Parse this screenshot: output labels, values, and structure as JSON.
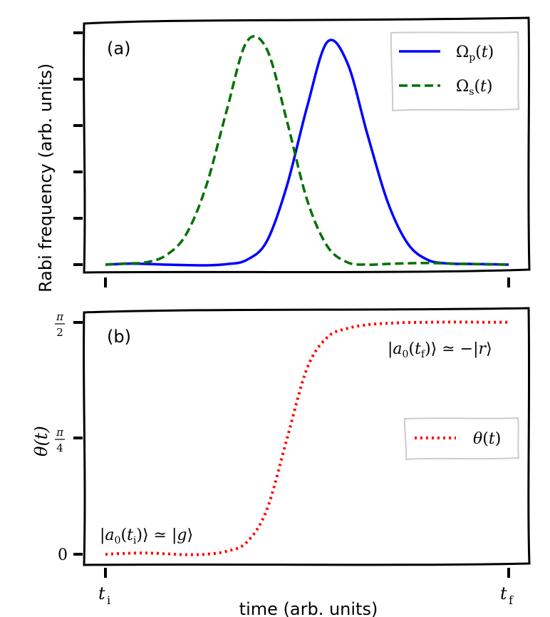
{
  "chart_data": [
    {
      "panel": "(a)",
      "type": "line",
      "ylabel": "Rabi frequency (arb. units)",
      "xlabel": "",
      "xlim": [
        0,
        1
      ],
      "ylim": [
        0,
        1
      ],
      "yticks_shown": 6,
      "grid": false,
      "legend_position": "top-right",
      "series": [
        {
          "name": "Ωp(t)",
          "style": "solid",
          "color": "#0000ff",
          "x": [
            0,
            0.05,
            0.1,
            0.15,
            0.2,
            0.25,
            0.3,
            0.35,
            0.4,
            0.45,
            0.5,
            0.55,
            0.6,
            0.65,
            0.7,
            0.75,
            0.8,
            0.85,
            0.9,
            0.95,
            1.0
          ],
          "values": [
            0,
            0.004,
            0.003,
            0.0,
            -0.002,
            -0.003,
            0.002,
            0.02,
            0.1,
            0.34,
            0.68,
            0.96,
            0.87,
            0.56,
            0.27,
            0.09,
            0.02,
            0.005,
            0.003,
            0.002,
            0.0
          ]
        },
        {
          "name": "Ωs(t)",
          "style": "dashed",
          "color": "#007000",
          "x": [
            0,
            0.05,
            0.1,
            0.15,
            0.2,
            0.25,
            0.3,
            0.35,
            0.4,
            0.45,
            0.5,
            0.55,
            0.6,
            0.65,
            0.7,
            0.75,
            0.8,
            0.85,
            0.9,
            0.95,
            1.0
          ],
          "values": [
            0,
            0.005,
            0.01,
            0.04,
            0.13,
            0.34,
            0.66,
            0.96,
            0.93,
            0.62,
            0.28,
            0.08,
            0.01,
            0.0,
            0.003,
            0.006,
            0.007,
            0.005,
            0.003,
            0.001,
            0.0
          ]
        }
      ]
    },
    {
      "panel": "(b)",
      "type": "line",
      "ylabel": "θ(t)",
      "xlabel": "time (arb. units)",
      "xlim": [
        0,
        1
      ],
      "ylim": [
        0,
        1.5708
      ],
      "ytick_labels": [
        "0",
        "π/4",
        "π/2"
      ],
      "ytick_values": [
        0,
        0.7854,
        1.5708
      ],
      "xtick_labels": [
        "t_i",
        "t_f"
      ],
      "grid": false,
      "legend_position": "center-right",
      "series": [
        {
          "name": "θ(t)",
          "style": "dotted",
          "color": "#ff0000",
          "x": [
            0,
            0.05,
            0.1,
            0.15,
            0.2,
            0.25,
            0.3,
            0.35,
            0.4,
            0.45,
            0.5,
            0.55,
            0.6,
            0.65,
            0.7,
            0.75,
            0.8,
            0.85,
            0.9,
            0.95,
            1.0
          ],
          "values": [
            0.0,
            0.006,
            0.008,
            0.003,
            -0.003,
            0.0,
            0.02,
            0.08,
            0.3,
            0.78,
            1.26,
            1.47,
            1.53,
            1.555,
            1.565,
            1.57,
            1.572,
            1.573,
            1.573,
            1.572,
            1.572
          ]
        }
      ],
      "annotations": [
        {
          "text": "|a0(ti)⟩ ≃ |g⟩",
          "position": "bottom-left"
        },
        {
          "text": "|a0(tf)⟩ ≃ −|r⟩",
          "position": "top-right"
        }
      ]
    }
  ]
}
